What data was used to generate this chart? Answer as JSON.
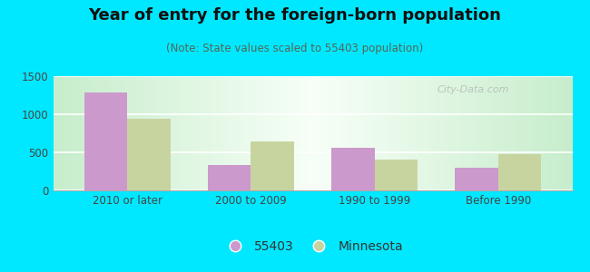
{
  "title": "Year of entry for the foreign-born population",
  "subtitle": "(Note: State values scaled to 55403 population)",
  "categories": [
    "2010 or later",
    "2000 to 2009",
    "1990 to 1999",
    "Before 1990"
  ],
  "values_55403": [
    1285,
    330,
    560,
    295
  ],
  "values_minnesota": [
    940,
    640,
    405,
    480
  ],
  "color_55403": "#cc99cc",
  "color_minnesota": "#c8d4a0",
  "background_outer": "#00e8ff",
  "background_inner_edge": "#c8eecc",
  "background_inner_center": "#f8fffc",
  "ylim": [
    0,
    1500
  ],
  "yticks": [
    0,
    500,
    1000,
    1500
  ],
  "bar_width": 0.35,
  "legend_55403": "55403",
  "legend_minnesota": "Minnesota",
  "title_fontsize": 13,
  "subtitle_fontsize": 8.5,
  "tick_fontsize": 8.5
}
